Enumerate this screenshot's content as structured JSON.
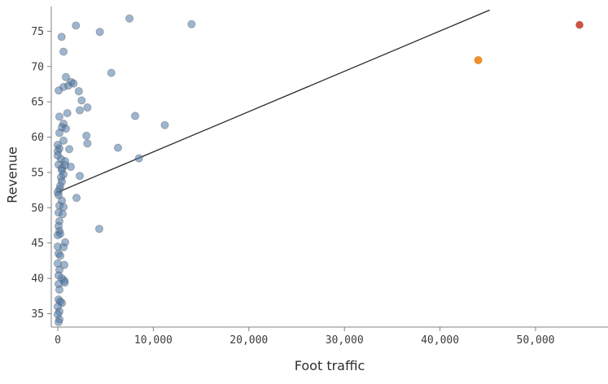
{
  "chart_data": {
    "type": "scatter",
    "title": "",
    "xlabel": "Foot traffic",
    "ylabel": "Revenue",
    "grid": false,
    "legend": "none",
    "xlim": [
      -680,
      57580
    ],
    "ylim": [
      33.1,
      78.5
    ],
    "x_ticks": [
      {
        "value": 0,
        "label": "0"
      },
      {
        "value": 10000,
        "label": "10,000"
      },
      {
        "value": 20000,
        "label": "20,000"
      },
      {
        "value": 30000,
        "label": "30,000"
      },
      {
        "value": 40000,
        "label": "40,000"
      },
      {
        "value": 50000,
        "label": "50,000"
      }
    ],
    "y_ticks": [
      {
        "value": 35,
        "label": "35"
      },
      {
        "value": 40,
        "label": "40"
      },
      {
        "value": 45,
        "label": "45"
      },
      {
        "value": 50,
        "label": "50"
      },
      {
        "value": 55,
        "label": "55"
      },
      {
        "value": 60,
        "label": "60"
      },
      {
        "value": 65,
        "label": "65"
      },
      {
        "value": 70,
        "label": "70"
      },
      {
        "value": 75,
        "label": "75"
      }
    ],
    "series": [
      {
        "name": "stores",
        "marker_color": "#4e79a7",
        "marker_opacity": 0.55,
        "marker_stroke": "#4a4a4a",
        "marker_stroke_opacity": 0.35,
        "marker_radius": 4.6,
        "points": [
          [
            7500,
            76.8
          ],
          [
            14000,
            76.0
          ],
          [
            1900,
            75.8
          ],
          [
            4400,
            74.9
          ],
          [
            400,
            74.2
          ],
          [
            600,
            72.1
          ],
          [
            5600,
            69.1
          ],
          [
            850,
            68.5
          ],
          [
            1400,
            67.8
          ],
          [
            1650,
            67.6
          ],
          [
            1100,
            67.3
          ],
          [
            600,
            67.1
          ],
          [
            100,
            66.6
          ],
          [
            2200,
            66.5
          ],
          [
            2500,
            65.2
          ],
          [
            3100,
            64.2
          ],
          [
            2300,
            63.8
          ],
          [
            1000,
            63.4
          ],
          [
            8100,
            63.0
          ],
          [
            170,
            62.9
          ],
          [
            600,
            61.9
          ],
          [
            11200,
            61.7
          ],
          [
            430,
            61.4
          ],
          [
            850,
            61.2
          ],
          [
            170,
            60.6
          ],
          [
            3000,
            60.2
          ],
          [
            600,
            59.5
          ],
          [
            3100,
            59.1
          ],
          [
            0,
            58.9
          ],
          [
            6300,
            58.5
          ],
          [
            170,
            58.4
          ],
          [
            1200,
            58.3
          ],
          [
            0,
            58.0
          ],
          [
            0,
            57.4
          ],
          [
            8500,
            57.0
          ],
          [
            340,
            56.9
          ],
          [
            770,
            56.6
          ],
          [
            85,
            56.1
          ],
          [
            770,
            56.0
          ],
          [
            1360,
            55.8
          ],
          [
            430,
            55.6
          ],
          [
            430,
            55.3
          ],
          [
            600,
            54.7
          ],
          [
            2300,
            54.5
          ],
          [
            340,
            54.3
          ],
          [
            430,
            53.7
          ],
          [
            260,
            53.1
          ],
          [
            170,
            52.6
          ],
          [
            0,
            52.2
          ],
          [
            85,
            51.8
          ],
          [
            1960,
            51.4
          ],
          [
            430,
            51.0
          ],
          [
            170,
            50.3
          ],
          [
            600,
            50.1
          ],
          [
            85,
            49.3
          ],
          [
            510,
            49.1
          ],
          [
            170,
            48.1
          ],
          [
            85,
            47.4
          ],
          [
            4340,
            47.0
          ],
          [
            170,
            46.7
          ],
          [
            260,
            46.3
          ],
          [
            0,
            46.1
          ],
          [
            770,
            45.1
          ],
          [
            0,
            44.5
          ],
          [
            600,
            44.4
          ],
          [
            85,
            43.5
          ],
          [
            260,
            43.2
          ],
          [
            0,
            42.1
          ],
          [
            680,
            41.9
          ],
          [
            170,
            41.2
          ],
          [
            85,
            40.4
          ],
          [
            430,
            40.0
          ],
          [
            680,
            39.7
          ],
          [
            730,
            39.4
          ],
          [
            85,
            39.2
          ],
          [
            170,
            38.4
          ],
          [
            85,
            37.0
          ],
          [
            260,
            36.7
          ],
          [
            430,
            36.5
          ],
          [
            0,
            36.0
          ],
          [
            170,
            35.3
          ],
          [
            0,
            34.9
          ],
          [
            170,
            34.2
          ],
          [
            85,
            33.8
          ]
        ]
      },
      {
        "name": "highlight-orange",
        "marker_color": "#f28e2b",
        "marker_opacity": 1,
        "marker_stroke": "#c87410",
        "marker_stroke_opacity": 0.5,
        "marker_radius": 4.6,
        "points": [
          [
            44000,
            70.9
          ]
        ]
      },
      {
        "name": "highlight-red",
        "marker_color": "#d15241",
        "marker_opacity": 1,
        "marker_stroke": "#b03d2e",
        "marker_stroke_opacity": 0.5,
        "marker_radius": 4.4,
        "points": [
          [
            54600,
            75.9
          ]
        ]
      }
    ],
    "trend_line": {
      "x1": 0,
      "y1": 52.2,
      "x2": 45200,
      "y2": 78.0,
      "color": "#2a2a2a",
      "width": 1.3
    }
  },
  "colors": {
    "axis_line": "#808080",
    "tick_mark": "#808080",
    "tick_text": "#3d3d3d",
    "axis_title_text": "#2e2e2e",
    "background": "#ffffff"
  }
}
